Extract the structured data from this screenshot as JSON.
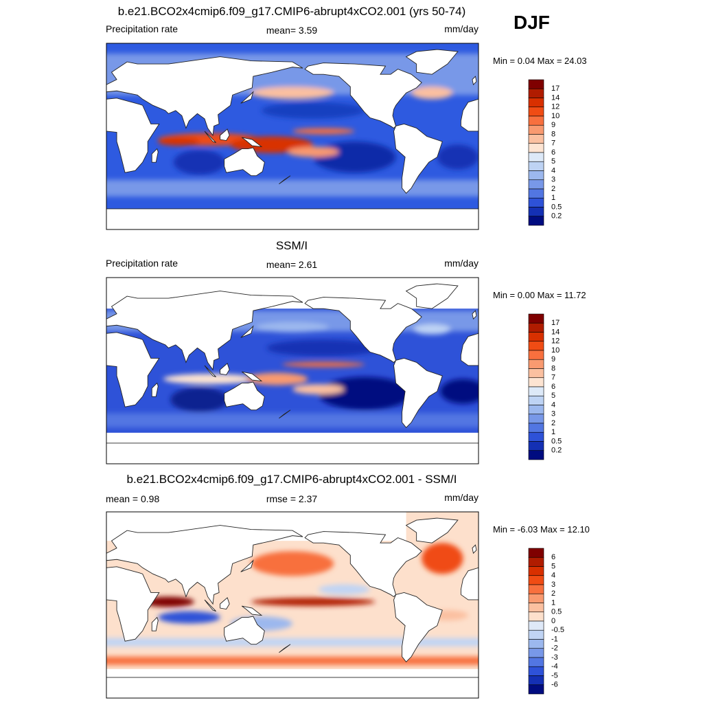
{
  "season": "DJF",
  "panels": [
    {
      "title": "b.e21.BCO2x4cmip6.f09_g17.CMIP6-abrupt4xCO2.001 (yrs 50-74)",
      "left": "Precipitation rate",
      "center": "mean=   3.59",
      "right": "mm/day",
      "range": "Min =   0.04 Max =  24.03",
      "colorbar": {
        "labels": [
          "17",
          "14",
          "12",
          "10",
          "9",
          "8",
          "7",
          "6",
          "5",
          "4",
          "3",
          "2",
          "1",
          "0.5",
          "0.2"
        ],
        "colors": [
          "#7f0000",
          "#b01c00",
          "#d83000",
          "#f04c14",
          "#f8703e",
          "#f99a70",
          "#fbc0a0",
          "#fde4d2",
          "#dde9f8",
          "#bed3f4",
          "#9cb8ee",
          "#7898e8",
          "#5276e2",
          "#2e52d8",
          "#1430b4",
          "#000c80"
        ]
      }
    },
    {
      "title": "SSM/I",
      "left": "Precipitation rate",
      "center": "mean=   2.61",
      "right": "mm/day",
      "range": "Min =   0.00 Max =  11.72",
      "colorbar": {
        "labels": [
          "17",
          "14",
          "12",
          "10",
          "9",
          "8",
          "7",
          "6",
          "5",
          "4",
          "3",
          "2",
          "1",
          "0.5",
          "0.2"
        ],
        "colors": [
          "#7f0000",
          "#b01c00",
          "#d83000",
          "#f04c14",
          "#f8703e",
          "#f99a70",
          "#fbc0a0",
          "#fde4d2",
          "#dde9f8",
          "#bed3f4",
          "#9cb8ee",
          "#7898e8",
          "#5276e2",
          "#2e52d8",
          "#1430b4",
          "#000c80"
        ]
      }
    },
    {
      "title": "b.e21.BCO2x4cmip6.f09_g17.CMIP6-abrupt4xCO2.001 - SSM/I",
      "left": "mean =   0.98",
      "center": "rmse =   2.37",
      "right": "mm/day",
      "range": "Min =  -6.03 Max =  12.10",
      "colorbar": {
        "labels": [
          "6",
          "5",
          "4",
          "3",
          "2",
          "1",
          "0.5",
          "0",
          "-0.5",
          "-1",
          "-2",
          "-3",
          "-4",
          "-5",
          "-6"
        ],
        "colors": [
          "#7f0000",
          "#b01c00",
          "#d83000",
          "#f04c14",
          "#f8703e",
          "#f99a70",
          "#fbc0a0",
          "#fde0cc",
          "#dfe9f8",
          "#c0d4f4",
          "#9cb8ee",
          "#7898e8",
          "#5276e2",
          "#2e52d8",
          "#1430b4",
          "#000c80"
        ]
      }
    }
  ]
}
